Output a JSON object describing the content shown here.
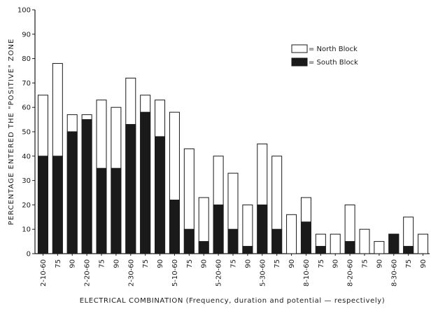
{
  "chart_data": {
    "type": "bar",
    "title": "",
    "xlabel": "ELECTRICAL COMBINATION (Frequency, duration and potential — respectively)",
    "ylabel": "PERCENTAGE ENTERED THE \"POSITIVE\" ZONE",
    "ylim": [
      0,
      100
    ],
    "yticks": [
      0,
      10,
      20,
      30,
      40,
      50,
      60,
      70,
      80,
      90,
      100
    ],
    "categories": [
      "2-10-60",
      "75",
      "90",
      "2-20-60",
      "75",
      "90",
      "2-30-60",
      "75",
      "90",
      "5-10-60",
      "75",
      "90",
      "5-20-60",
      "75",
      "90",
      "5-30-60",
      "75",
      "90",
      "8-10-60",
      "75",
      "90",
      "8-20-60",
      "75",
      "90",
      "8-30-60",
      "75",
      "90"
    ],
    "series": [
      {
        "name": "North Block",
        "color": "#ffffff",
        "values": [
          65,
          78,
          57,
          57,
          63,
          60,
          72,
          65,
          63,
          58,
          43,
          23,
          40,
          33,
          20,
          45,
          40,
          16,
          23,
          8,
          8,
          20,
          10,
          5,
          8,
          15,
          8
        ]
      },
      {
        "name": "South Block",
        "color": "#1a1a1a",
        "values": [
          40,
          40,
          50,
          55,
          35,
          35,
          53,
          58,
          48,
          22,
          10,
          5,
          20,
          10,
          3,
          20,
          10,
          0,
          13,
          3,
          0,
          5,
          0,
          0,
          8,
          3,
          0
        ]
      }
    ],
    "legend": {
      "position": "top-right",
      "entries": [
        "= North Block",
        "= South Block"
      ]
    },
    "grid": false
  }
}
